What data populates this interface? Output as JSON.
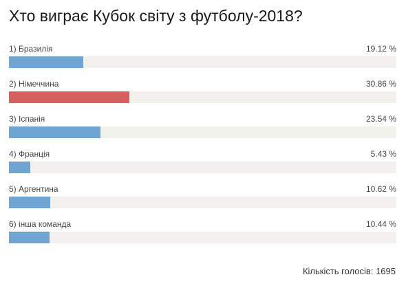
{
  "poll": {
    "title": "Хто виграє Кубок світу з футболу-2018?",
    "options": [
      {
        "label": "1) Бразилія",
        "percent_text": "19.12 %",
        "percent": 19.12,
        "color": "#6fa5d2"
      },
      {
        "label": "2) Німеччина",
        "percent_text": "30.86 %",
        "percent": 30.86,
        "color": "#d85f5f"
      },
      {
        "label": "3) Іспанія",
        "percent_text": "23.54 %",
        "percent": 23.54,
        "color": "#6fa5d2"
      },
      {
        "label": "4) Франція",
        "percent_text": "5.43 %",
        "percent": 5.43,
        "color": "#6fa5d2"
      },
      {
        "label": "5) Аргентина",
        "percent_text": "10.62 %",
        "percent": 10.62,
        "color": "#6fa5d2"
      },
      {
        "label": "6) інша команда",
        "percent_text": "10.44 %",
        "percent": 10.44,
        "color": "#6fa5d2"
      }
    ],
    "total_label": "Кількість голосів:",
    "total_votes": "1695"
  },
  "colors": {
    "track": "#f3f1ee",
    "bar": "#6fa5d2",
    "bar_leader": "#d85f5f"
  }
}
